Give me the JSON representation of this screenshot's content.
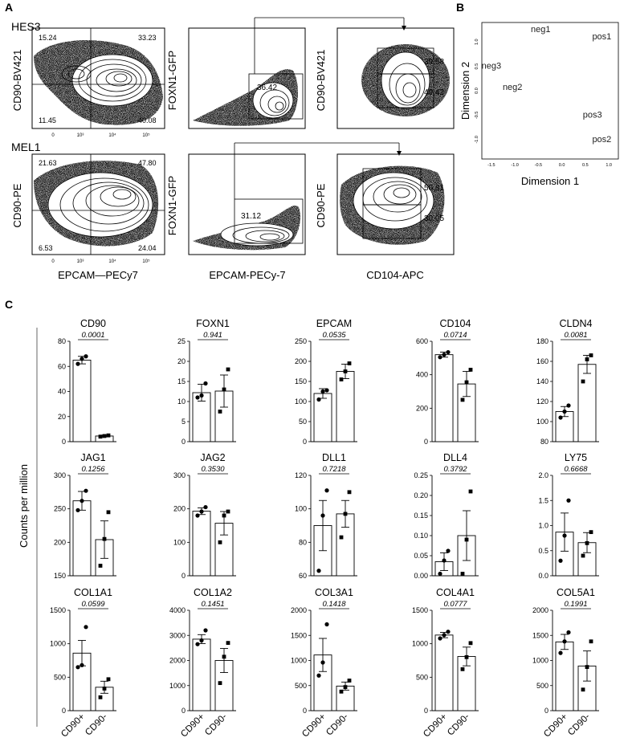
{
  "panel_labels": [
    "A",
    "B",
    "C"
  ],
  "flow": {
    "row_labels": [
      "HES3",
      "MEL1"
    ],
    "rows": [
      {
        "plots": [
          {
            "ylabel": "CD90-BV421",
            "xlabel": "",
            "quadrants": [
              "15.24",
              "33.23",
              "11.45",
              "40.08"
            ]
          },
          {
            "ylabel": "FOXN1-GFP",
            "xlabel": "",
            "gates": [
              "36.42"
            ]
          },
          {
            "ylabel": "CD90-BV421",
            "xlabel": "",
            "gates": [
              "39.58",
              "49.42"
            ]
          }
        ]
      },
      {
        "plots": [
          {
            "ylabel": "CD90-PE",
            "xlabel": "EPCAM—PECy7",
            "quadrants": [
              "21.63",
              "47.80",
              "6.53",
              "24.04"
            ]
          },
          {
            "ylabel": "FOXN1-GFP",
            "xlabel": "EPCAM-PECy-7",
            "gates": [
              "31.12"
            ]
          },
          {
            "ylabel": "CD90-PE",
            "xlabel": "CD104-APC",
            "gates": [
              "50.81",
              "30.05"
            ]
          }
        ]
      }
    ],
    "tick_labels": {
      "x": [
        "0",
        "10³",
        "10⁴",
        "10⁵"
      ],
      "y": [
        "0",
        "10³",
        "10⁴",
        "10⁵"
      ]
    }
  },
  "mds": {
    "xlabel": "Dimension 1",
    "ylabel": "Dimension 2",
    "x_ticks": [
      "-1.5",
      "-1.0",
      "-0.5",
      "0.0",
      "0.5",
      "1.0"
    ],
    "y_ticks": [
      "1.0",
      "0.5",
      "0.0",
      "-0.5",
      "-1.0"
    ],
    "points": [
      {
        "label": "neg1",
        "x": -0.45,
        "y": 1.2
      },
      {
        "label": "pos1",
        "x": 0.85,
        "y": 1.05
      },
      {
        "label": "neg3",
        "x": -1.5,
        "y": 0.45
      },
      {
        "label": "neg2",
        "x": -1.05,
        "y": 0.02
      },
      {
        "label": "pos3",
        "x": 0.65,
        "y": -0.55
      },
      {
        "label": "pos2",
        "x": 0.85,
        "y": -1.05
      }
    ]
  },
  "bar_section": {
    "ylabel": "Counts per million",
    "groups": [
      "CD90+",
      "CD90-"
    ]
  },
  "chart_data": [
    {
      "type": "bar",
      "title": "CD90",
      "pvalue": "0.0001",
      "categories": [
        "CD90+",
        "CD90-"
      ],
      "values": [
        65,
        4.5
      ],
      "errors": [
        3,
        0.7
      ],
      "ylim": [
        0,
        80
      ],
      "yticks": [
        0,
        20,
        40,
        60,
        80
      ],
      "points": [
        [
          62,
          66,
          68
        ],
        [
          4,
          4.5,
          5
        ]
      ]
    },
    {
      "type": "bar",
      "title": "FOXN1",
      "pvalue": "0.941",
      "categories": [
        "CD90+",
        "CD90-"
      ],
      "values": [
        12.2,
        12.6
      ],
      "errors": [
        2.1,
        4
      ],
      "ylim": [
        0,
        25
      ],
      "yticks": [
        0,
        5,
        10,
        15,
        20,
        25
      ],
      "points": [
        [
          11,
          11.5,
          14.5
        ],
        [
          7.5,
          13,
          18
        ]
      ]
    },
    {
      "type": "bar",
      "title": "EPCAM",
      "pvalue": "0.0535",
      "categories": [
        "CD90+",
        "CD90-"
      ],
      "values": [
        120,
        175
      ],
      "errors": [
        12,
        18
      ],
      "ylim": [
        0,
        250
      ],
      "yticks": [
        0,
        50,
        100,
        150,
        200,
        250
      ],
      "points": [
        [
          105,
          125,
          128
        ],
        [
          155,
          175,
          195
        ]
      ]
    },
    {
      "type": "bar",
      "title": "CD104",
      "pvalue": "0.0714",
      "categories": [
        "CD90+",
        "CD90-"
      ],
      "values": [
        520,
        345
      ],
      "errors": [
        15,
        75
      ],
      "ylim": [
        0,
        600
      ],
      "yticks": [
        0,
        200,
        400,
        600
      ],
      "points": [
        [
          505,
          520,
          535
        ],
        [
          250,
          355,
          430
        ]
      ]
    },
    {
      "type": "bar",
      "title": "CLDN4",
      "pvalue": "0.0081",
      "categories": [
        "CD90+",
        "CD90-"
      ],
      "values": [
        110,
        157
      ],
      "errors": [
        5,
        9
      ],
      "ylim": [
        80,
        180
      ],
      "yticks": [
        80,
        100,
        120,
        140,
        160,
        180
      ],
      "points": [
        [
          104,
          110,
          116
        ],
        [
          140,
          162,
          166
        ]
      ]
    },
    {
      "type": "bar",
      "title": "JAG1",
      "pvalue": "0.1256",
      "categories": [
        "CD90+",
        "CD90-"
      ],
      "values": [
        262,
        204
      ],
      "errors": [
        14,
        28
      ],
      "ylim": [
        150,
        300
      ],
      "yticks": [
        150,
        200,
        250,
        300
      ],
      "points": [
        [
          248,
          262,
          277
        ],
        [
          165,
          205,
          245
        ]
      ]
    },
    {
      "type": "bar",
      "title": "JAG2",
      "pvalue": "0.3530",
      "categories": [
        "CD90+",
        "CD90-"
      ],
      "values": [
        193,
        157
      ],
      "errors": [
        10,
        35
      ],
      "ylim": [
        0,
        300
      ],
      "yticks": [
        0,
        100,
        200,
        300
      ],
      "points": [
        [
          180,
          192,
          205
        ],
        [
          100,
          180,
          192
        ]
      ]
    },
    {
      "type": "bar",
      "title": "DLL1",
      "pvalue": "0.7218",
      "categories": [
        "CD90+",
        "CD90-"
      ],
      "values": [
        90,
        97
      ],
      "errors": [
        15,
        8
      ],
      "ylim": [
        60,
        120
      ],
      "yticks": [
        60,
        80,
        100,
        120
      ],
      "points": [
        [
          63,
          96,
          111
        ],
        [
          83,
          97,
          110
        ]
      ]
    },
    {
      "type": "bar",
      "title": "DLL4",
      "pvalue": "0.3792",
      "categories": [
        "CD90+",
        "CD90-"
      ],
      "values": [
        0.035,
        0.1
      ],
      "errors": [
        0.022,
        0.062
      ],
      "ylim": [
        0,
        0.25
      ],
      "yticks": [
        0,
        0.05,
        0.1,
        0.15,
        0.2,
        0.25
      ],
      "ytick_labels": [
        "0.00",
        "0.05",
        "0.10",
        "0.15",
        "0.20",
        "0.25"
      ],
      "points": [
        [
          0.005,
          0.038,
          0.062
        ],
        [
          0.005,
          0.09,
          0.21
        ]
      ]
    },
    {
      "type": "bar",
      "title": "LY75",
      "pvalue": "0.6668",
      "categories": [
        "CD90+",
        "CD90-"
      ],
      "values": [
        0.87,
        0.66
      ],
      "errors": [
        0.38,
        0.2
      ],
      "ylim": [
        0,
        2
      ],
      "yticks": [
        0,
        0.5,
        1,
        1.5,
        2
      ],
      "ytick_labels": [
        "0.0",
        "0.5",
        "1.0",
        "1.5",
        "2.0"
      ],
      "points": [
        [
          0.3,
          0.8,
          1.5
        ],
        [
          0.4,
          0.65,
          0.87
        ]
      ]
    },
    {
      "type": "bar",
      "title": "COL1A1",
      "pvalue": "0.0599",
      "categories": [
        "CD90+",
        "CD90-"
      ],
      "values": [
        860,
        350
      ],
      "errors": [
        190,
        90
      ],
      "ylim": [
        0,
        1500
      ],
      "yticks": [
        0,
        500,
        1000,
        1500
      ],
      "points": [
        [
          650,
          680,
          1250
        ],
        [
          200,
          330,
          470
        ]
      ]
    },
    {
      "type": "bar",
      "title": "COL1A2",
      "pvalue": "0.1451",
      "categories": [
        "CD90+",
        "CD90-"
      ],
      "values": [
        2850,
        2000
      ],
      "errors": [
        180,
        480
      ],
      "ylim": [
        0,
        4000
      ],
      "yticks": [
        0,
        1000,
        2000,
        3000,
        4000
      ],
      "points": [
        [
          2650,
          2800,
          3200
        ],
        [
          1100,
          2150,
          2700
        ]
      ]
    },
    {
      "type": "bar",
      "title": "COL3A1",
      "pvalue": "0.1418",
      "categories": [
        "CD90+",
        "CD90-"
      ],
      "values": [
        1110,
        490
      ],
      "errors": [
        330,
        80
      ],
      "ylim": [
        0,
        2000
      ],
      "yticks": [
        0,
        500,
        1000,
        1500,
        2000
      ],
      "points": [
        [
          700,
          960,
          1720
        ],
        [
          380,
          470,
          600
        ]
      ]
    },
    {
      "type": "bar",
      "title": "COL4A1",
      "pvalue": "0.0777",
      "categories": [
        "CD90+",
        "CD90-"
      ],
      "values": [
        1130,
        810
      ],
      "errors": [
        40,
        140
      ],
      "ylim": [
        0,
        1500
      ],
      "yticks": [
        0,
        500,
        1000,
        1500
      ],
      "points": [
        [
          1080,
          1130,
          1180
        ],
        [
          620,
          800,
          1010
        ]
      ]
    },
    {
      "type": "bar",
      "title": "COL5A1",
      "pvalue": "0.1991",
      "categories": [
        "CD90+",
        "CD90-"
      ],
      "values": [
        1370,
        890
      ],
      "errors": [
        150,
        300
      ],
      "ylim": [
        0,
        2000
      ],
      "yticks": [
        0,
        500,
        1000,
        1500,
        2000
      ],
      "points": [
        [
          1150,
          1380,
          1560
        ],
        [
          420,
          870,
          1380
        ]
      ]
    }
  ]
}
